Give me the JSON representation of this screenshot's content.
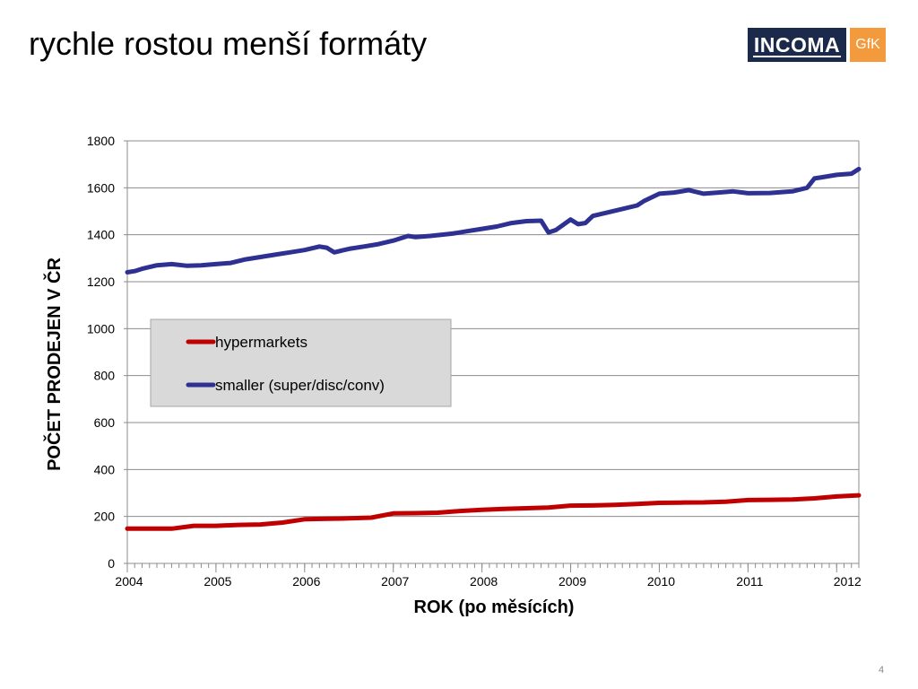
{
  "slide": {
    "title": "rychle rostou menší formáty",
    "page_number": "4"
  },
  "logo": {
    "primary_text": "INCOMA",
    "secondary_text": "GfK",
    "primary_color": "#1b2a4a",
    "secondary_color": "#f39a3d"
  },
  "chart_data": {
    "type": "line",
    "title": "",
    "xlabel": "ROK (po měsících)",
    "ylabel": "POČET PRODEJEN V ČR",
    "ylim": [
      0,
      1800
    ],
    "yticks": [
      "0",
      "200",
      "400",
      "600",
      "800",
      "1000",
      "1200",
      "1400",
      "1600",
      "1800"
    ],
    "xtick_labels": [
      {
        "label": "2004",
        "x": "2004-01"
      },
      {
        "label": "2005",
        "x": "2005-01"
      },
      {
        "label": "2006",
        "x": "2006-01"
      },
      {
        "label": "2007",
        "x": "2007-01"
      },
      {
        "label": "2008",
        "x": "2008-01"
      },
      {
        "label": "2009",
        "x": "2009-01"
      },
      {
        "label": "2010",
        "x": "2010-01"
      },
      {
        "label": "2011",
        "x": "2011-01"
      },
      {
        "label": "2012",
        "x": "2012-01"
      }
    ],
    "grid": true,
    "legend_position": "center-left",
    "series": [
      {
        "name": "hypermarkets",
        "color": "#c00000",
        "points": [
          [
            "2004-01",
            148
          ],
          [
            "2004-04",
            148
          ],
          [
            "2004-07",
            148
          ],
          [
            "2004-10",
            160
          ],
          [
            "2005-01",
            160
          ],
          [
            "2005-04",
            164
          ],
          [
            "2005-07",
            166
          ],
          [
            "2005-10",
            174
          ],
          [
            "2006-01",
            188
          ],
          [
            "2006-04",
            190
          ],
          [
            "2006-07",
            192
          ],
          [
            "2006-10",
            195
          ],
          [
            "2007-01",
            213
          ],
          [
            "2007-04",
            214
          ],
          [
            "2007-07",
            216
          ],
          [
            "2007-10",
            223
          ],
          [
            "2008-01",
            228
          ],
          [
            "2008-04",
            232
          ],
          [
            "2008-07",
            235
          ],
          [
            "2008-10",
            238
          ],
          [
            "2009-01",
            246
          ],
          [
            "2009-04",
            247
          ],
          [
            "2009-07",
            249
          ],
          [
            "2009-10",
            253
          ],
          [
            "2010-01",
            258
          ],
          [
            "2010-04",
            259
          ],
          [
            "2010-07",
            260
          ],
          [
            "2010-10",
            263
          ],
          [
            "2011-01",
            270
          ],
          [
            "2011-04",
            271
          ],
          [
            "2011-07",
            272
          ],
          [
            "2011-10",
            277
          ],
          [
            "2012-01",
            285
          ],
          [
            "2012-04",
            290
          ]
        ]
      },
      {
        "name": "smaller (super/disc/conv)",
        "color": "#2e3192",
        "points": [
          [
            "2004-01",
            1240
          ],
          [
            "2004-02",
            1245
          ],
          [
            "2004-03",
            1255
          ],
          [
            "2004-05",
            1270
          ],
          [
            "2004-07",
            1275
          ],
          [
            "2004-09",
            1268
          ],
          [
            "2004-11",
            1270
          ],
          [
            "2005-01",
            1275
          ],
          [
            "2005-03",
            1280
          ],
          [
            "2005-05",
            1295
          ],
          [
            "2005-07",
            1305
          ],
          [
            "2005-09",
            1315
          ],
          [
            "2005-11",
            1325
          ],
          [
            "2006-01",
            1335
          ],
          [
            "2006-03",
            1350
          ],
          [
            "2006-04",
            1345
          ],
          [
            "2006-05",
            1325
          ],
          [
            "2006-07",
            1340
          ],
          [
            "2006-09",
            1350
          ],
          [
            "2006-11",
            1360
          ],
          [
            "2007-01",
            1375
          ],
          [
            "2007-03",
            1395
          ],
          [
            "2007-04",
            1390
          ],
          [
            "2007-06",
            1395
          ],
          [
            "2007-09",
            1405
          ],
          [
            "2007-11",
            1415
          ],
          [
            "2008-01",
            1425
          ],
          [
            "2008-03",
            1435
          ],
          [
            "2008-05",
            1450
          ],
          [
            "2008-07",
            1458
          ],
          [
            "2008-09",
            1460
          ],
          [
            "2008-10",
            1410
          ],
          [
            "2008-11",
            1420
          ],
          [
            "2009-01",
            1465
          ],
          [
            "2009-02",
            1445
          ],
          [
            "2009-03",
            1450
          ],
          [
            "2009-04",
            1480
          ],
          [
            "2009-06",
            1495
          ],
          [
            "2009-08",
            1510
          ],
          [
            "2009-10",
            1525
          ],
          [
            "2009-11",
            1545
          ],
          [
            "2010-01",
            1575
          ],
          [
            "2010-03",
            1580
          ],
          [
            "2010-05",
            1590
          ],
          [
            "2010-07",
            1575
          ],
          [
            "2010-09",
            1580
          ],
          [
            "2010-11",
            1585
          ],
          [
            "2011-01",
            1577
          ],
          [
            "2011-04",
            1578
          ],
          [
            "2011-07",
            1585
          ],
          [
            "2011-09",
            1600
          ],
          [
            "2011-10",
            1640
          ],
          [
            "2011-11",
            1645
          ],
          [
            "2012-01",
            1655
          ],
          [
            "2012-03",
            1660
          ],
          [
            "2012-04",
            1680
          ]
        ]
      }
    ]
  }
}
